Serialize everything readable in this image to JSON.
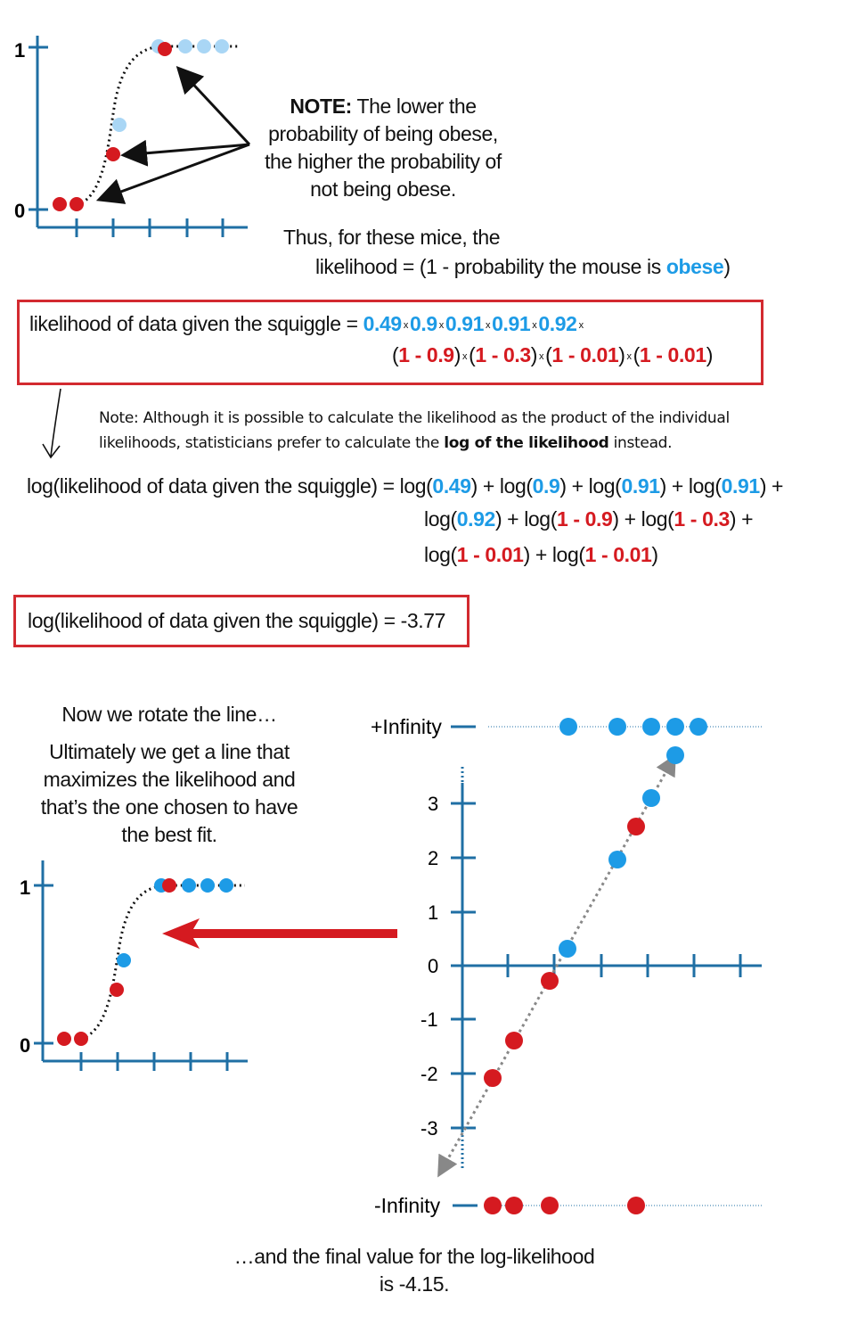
{
  "top_plot": {
    "y_top": "1",
    "y_bottom": "0"
  },
  "note": {
    "bold": "NOTE:",
    "line1": " The lower the",
    "line2": "probability of being obese,",
    "line3": "the higher the probability of",
    "line4": "not being obese."
  },
  "thus": {
    "line1": "Thus, for these mice, the",
    "line2_prefix": "likelihood = (1 - probability the mouse is ",
    "line2_highlight": "obese",
    "line2_suffix": ")"
  },
  "likelihood_box": {
    "label": "likelihood of data given the squiggle = ",
    "obese_values": [
      "0.49",
      "0.9",
      "0.91",
      "0.91",
      "0.92"
    ],
    "times": "x",
    "not_obese_terms": [
      {
        "one": "1",
        "minus": " - ",
        "value": "0.9"
      },
      {
        "one": "1",
        "minus": " - ",
        "value": "0.3"
      },
      {
        "one": "1",
        "minus": " - ",
        "value": "0.01"
      },
      {
        "one": "1",
        "minus": " - ",
        "value": "0.01"
      }
    ]
  },
  "side_note": {
    "line1": "Note: Although it is possible to calculate the likelihood as the product of the individual",
    "line2_prefix": "likelihoods, statisticians prefer to calculate the ",
    "line2_bold": "log of the likelihood",
    "line2_suffix": " instead."
  },
  "log_eq": {
    "label": "log(likelihood of data given the squiggle) = ",
    "blue_values": [
      "0.49",
      "0.9",
      "0.91",
      "0.91",
      "0.92"
    ],
    "red_values": [
      "0.9",
      "0.3",
      "0.01",
      "0.01"
    ]
  },
  "result_box": {
    "text": "log(likelihood of data given the squiggle) = -3.77"
  },
  "rotate_text": {
    "line1": "Now we rotate the line…",
    "line2": "Ultimately we get a line that",
    "line3": "maximizes the likelihood and",
    "line4": "that’s the one chosen to have",
    "line5": "the best fit."
  },
  "bottom_plot": {
    "y_top": "1",
    "y_bottom": "0"
  },
  "log_odds_plot": {
    "plus_inf": "+Infinity",
    "minus_inf": "-Infinity",
    "ticks": [
      "3",
      "2",
      "1",
      "0",
      "-1",
      "-2",
      "-3"
    ]
  },
  "final_text": {
    "line1": "…and the final value for the log-likelihood",
    "line2": "is -4.15."
  },
  "colors": {
    "blue": "#1d9be6",
    "light_blue": "#a9d6f5",
    "red": "#d51a20",
    "axis": "#1f6fa4",
    "box_border": "#d32a30"
  }
}
